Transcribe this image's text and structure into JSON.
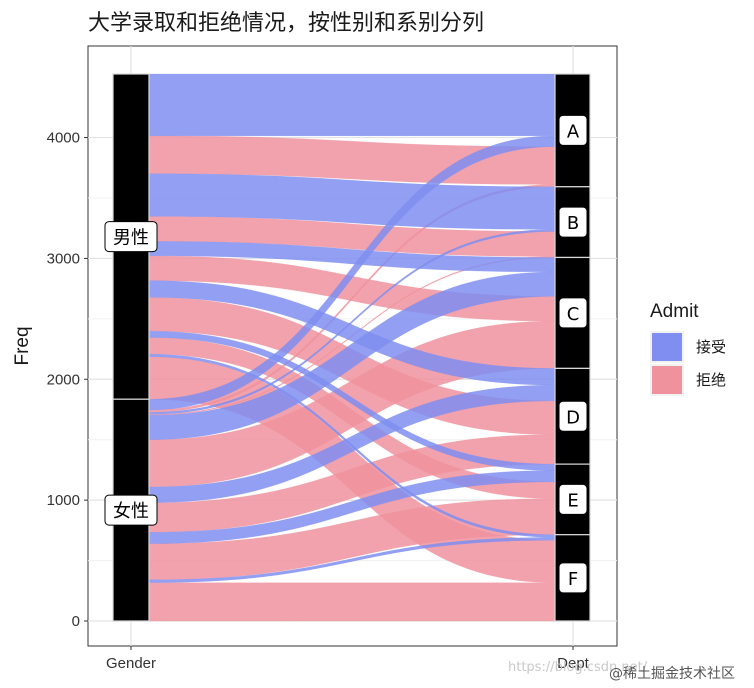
{
  "chart_data": {
    "type": "alluvial",
    "title": "大学录取和拒绝情况，按性别和系别分列",
    "xlabel": "",
    "ylabel": "Freq",
    "ylim": [
      0,
      4526
    ],
    "yticks": [
      0,
      1000,
      2000,
      3000,
      4000
    ],
    "axes": [
      "Gender",
      "Dept"
    ],
    "strata": {
      "Gender": [
        "男性",
        "女性"
      ],
      "Dept": [
        "A",
        "B",
        "C",
        "D",
        "E",
        "F"
      ]
    },
    "legend": {
      "title": "Admit",
      "position": "right",
      "entries": [
        {
          "label": "接受",
          "color": "#7f8ef0"
        },
        {
          "label": "拒绝",
          "color": "#f0929e"
        }
      ]
    },
    "flows": [
      {
        "gender": "男性",
        "dept": "A",
        "admit": "接受",
        "freq": 512
      },
      {
        "gender": "男性",
        "dept": "A",
        "admit": "拒绝",
        "freq": 313
      },
      {
        "gender": "男性",
        "dept": "B",
        "admit": "接受",
        "freq": 353
      },
      {
        "gender": "男性",
        "dept": "B",
        "admit": "拒绝",
        "freq": 207
      },
      {
        "gender": "男性",
        "dept": "C",
        "admit": "接受",
        "freq": 120
      },
      {
        "gender": "男性",
        "dept": "C",
        "admit": "拒绝",
        "freq": 205
      },
      {
        "gender": "男性",
        "dept": "D",
        "admit": "接受",
        "freq": 138
      },
      {
        "gender": "男性",
        "dept": "D",
        "admit": "拒绝",
        "freq": 279
      },
      {
        "gender": "男性",
        "dept": "E",
        "admit": "接受",
        "freq": 53
      },
      {
        "gender": "男性",
        "dept": "E",
        "admit": "拒绝",
        "freq": 138
      },
      {
        "gender": "男性",
        "dept": "F",
        "admit": "接受",
        "freq": 22
      },
      {
        "gender": "男性",
        "dept": "F",
        "admit": "拒绝",
        "freq": 351
      },
      {
        "gender": "女性",
        "dept": "A",
        "admit": "接受",
        "freq": 89
      },
      {
        "gender": "女性",
        "dept": "A",
        "admit": "拒绝",
        "freq": 19
      },
      {
        "gender": "女性",
        "dept": "B",
        "admit": "接受",
        "freq": 17
      },
      {
        "gender": "女性",
        "dept": "B",
        "admit": "拒绝",
        "freq": 8
      },
      {
        "gender": "女性",
        "dept": "C",
        "admit": "接受",
        "freq": 202
      },
      {
        "gender": "女性",
        "dept": "C",
        "admit": "拒绝",
        "freq": 391
      },
      {
        "gender": "女性",
        "dept": "D",
        "admit": "接受",
        "freq": 131
      },
      {
        "gender": "女性",
        "dept": "D",
        "admit": "拒绝",
        "freq": 244
      },
      {
        "gender": "女性",
        "dept": "E",
        "admit": "接受",
        "freq": 94
      },
      {
        "gender": "女性",
        "dept": "E",
        "admit": "拒绝",
        "freq": 299
      },
      {
        "gender": "女性",
        "dept": "F",
        "admit": "接受",
        "freq": 24
      },
      {
        "gender": "女性",
        "dept": "F",
        "admit": "拒绝",
        "freq": 317
      }
    ]
  },
  "watermark": {
    "url": "https://blog.csdn.net/",
    "site": "@稀土掘金技术社区"
  }
}
